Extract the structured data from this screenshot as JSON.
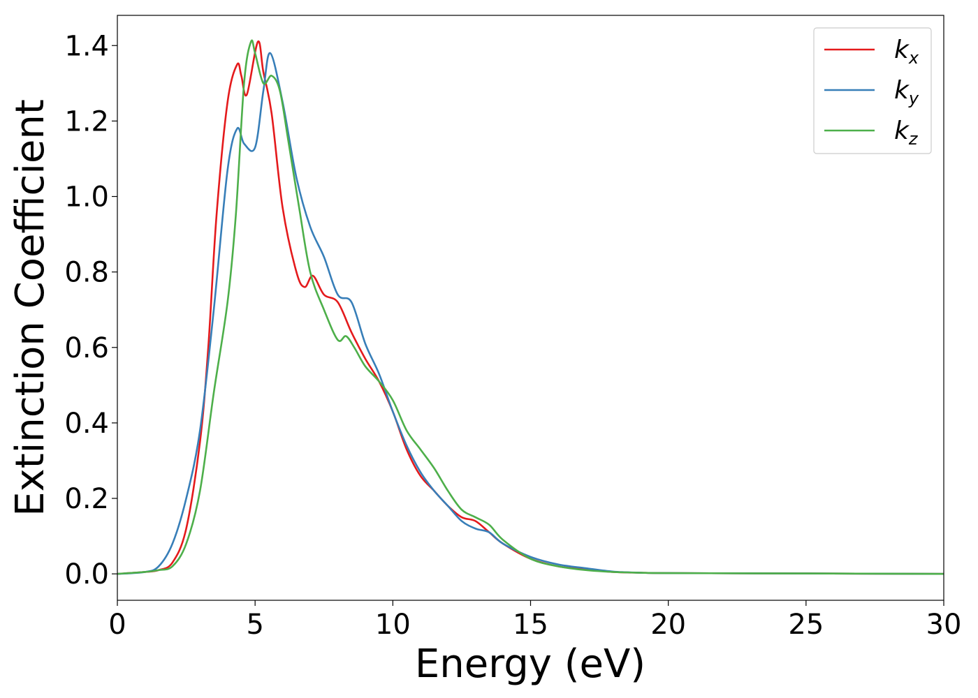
{
  "chart_data": {
    "type": "line",
    "title": "",
    "xlabel": "Energy (eV)",
    "ylabel": "Extinction Coefficient",
    "xlim": [
      0,
      30
    ],
    "ylim": [
      -0.07,
      1.48
    ],
    "xticks": [
      0,
      5,
      10,
      15,
      20,
      25,
      30
    ],
    "xtick_labels": [
      "0",
      "5",
      "10",
      "15",
      "20",
      "25",
      "30"
    ],
    "yticks": [
      0.0,
      0.2,
      0.4,
      0.6,
      0.8,
      1.0,
      1.2,
      1.4
    ],
    "ytick_labels": [
      "0.0",
      "0.2",
      "0.4",
      "0.6",
      "0.8",
      "1.0",
      "1.2",
      "1.4"
    ],
    "grid": false,
    "legend_position": "top-right",
    "series": [
      {
        "name": "k_x",
        "label_main": "k",
        "label_sub": "x",
        "color": "#e41a1c",
        "x": [
          0,
          1,
          1.5,
          2,
          2.5,
          3,
          3.3,
          3.6,
          4.0,
          4.35,
          4.5,
          4.7,
          5.1,
          5.3,
          5.6,
          6.0,
          6.5,
          6.8,
          7.1,
          7.5,
          8.0,
          8.5,
          9.0,
          9.5,
          10.0,
          10.5,
          11.0,
          11.5,
          12.0,
          12.5,
          13.0,
          13.5,
          14.0,
          15.0,
          16.0,
          17.0,
          18.0,
          19.0,
          20.0,
          25.0,
          30.0
        ],
        "y": [
          0,
          0.005,
          0.01,
          0.03,
          0.12,
          0.35,
          0.6,
          0.95,
          1.25,
          1.35,
          1.32,
          1.27,
          1.41,
          1.33,
          1.22,
          0.97,
          0.8,
          0.76,
          0.79,
          0.74,
          0.72,
          0.64,
          0.57,
          0.51,
          0.43,
          0.33,
          0.26,
          0.22,
          0.18,
          0.15,
          0.14,
          0.11,
          0.08,
          0.04,
          0.02,
          0.012,
          0.005,
          0.003,
          0.002,
          0.001,
          0.0
        ]
      },
      {
        "name": "k_y",
        "label_main": "k",
        "label_sub": "y",
        "color": "#377eb8",
        "x": [
          0,
          1,
          1.5,
          2,
          2.5,
          3,
          3.5,
          4.0,
          4.35,
          4.6,
          5.0,
          5.3,
          5.55,
          6.0,
          6.5,
          7.0,
          7.5,
          8.0,
          8.5,
          9.0,
          9.5,
          10.0,
          10.5,
          11.0,
          11.5,
          12.0,
          12.5,
          13.0,
          13.5,
          14.0,
          15.0,
          16.0,
          17.0,
          18.0,
          19.0,
          20.0,
          25.0,
          30.0
        ],
        "y": [
          0,
          0.005,
          0.02,
          0.08,
          0.2,
          0.38,
          0.7,
          1.07,
          1.18,
          1.14,
          1.13,
          1.28,
          1.38,
          1.25,
          1.05,
          0.92,
          0.84,
          0.74,
          0.72,
          0.61,
          0.53,
          0.43,
          0.34,
          0.27,
          0.22,
          0.18,
          0.14,
          0.12,
          0.11,
          0.08,
          0.045,
          0.025,
          0.015,
          0.006,
          0.003,
          0.002,
          0.001,
          0.0
        ]
      },
      {
        "name": "k_z",
        "label_main": "k",
        "label_sub": "z",
        "color": "#4daf4a",
        "x": [
          0,
          1,
          1.5,
          2,
          2.5,
          3,
          3.5,
          4.0,
          4.3,
          4.6,
          4.85,
          5.0,
          5.3,
          5.6,
          5.9,
          6.2,
          6.6,
          7.0,
          7.5,
          8.0,
          8.3,
          8.6,
          9.0,
          9.5,
          10.0,
          10.5,
          11.0,
          11.5,
          12.0,
          12.5,
          13.0,
          13.5,
          14.0,
          15.0,
          16.0,
          17.0,
          18.0,
          19.0,
          20.0,
          25.0,
          30.0
        ],
        "y": [
          0,
          0.005,
          0.01,
          0.02,
          0.08,
          0.22,
          0.48,
          0.72,
          0.95,
          1.3,
          1.41,
          1.38,
          1.3,
          1.32,
          1.28,
          1.15,
          0.97,
          0.8,
          0.7,
          0.62,
          0.63,
          0.6,
          0.55,
          0.51,
          0.46,
          0.38,
          0.33,
          0.28,
          0.22,
          0.17,
          0.15,
          0.13,
          0.09,
          0.04,
          0.02,
          0.01,
          0.005,
          0.003,
          0.002,
          0.001,
          0.0
        ]
      }
    ]
  }
}
